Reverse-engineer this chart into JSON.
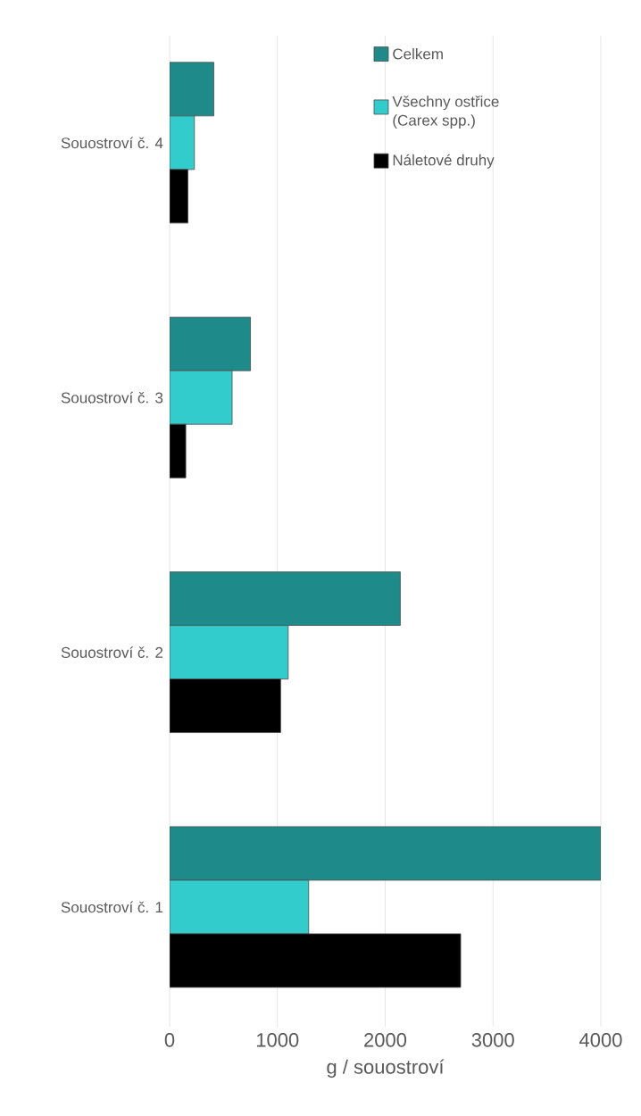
{
  "chart_data": {
    "type": "bar",
    "orientation": "horizontal",
    "xlabel": "g / souostroví",
    "categories": [
      "Souostroví č. 4",
      "Souostroví č. 3",
      "Souostroví č. 2",
      "Souostroví č. 1"
    ],
    "series": [
      {
        "name": "Celkem",
        "color": "#1f8a8a",
        "values": [
          410,
          750,
          2140,
          4000
        ]
      },
      {
        "name": "Všechny ostřice (Carex spp.)",
        "color": "#33cccc",
        "values": [
          230,
          580,
          1100,
          1290
        ]
      },
      {
        "name": "Náletové druhy",
        "color": "#000000",
        "values": [
          170,
          150,
          1030,
          2700
        ]
      }
    ],
    "xlim": [
      0,
      4000
    ],
    "xticks": [
      0,
      1000,
      2000,
      3000,
      4000
    ],
    "grid": "x",
    "legend": "top right"
  }
}
